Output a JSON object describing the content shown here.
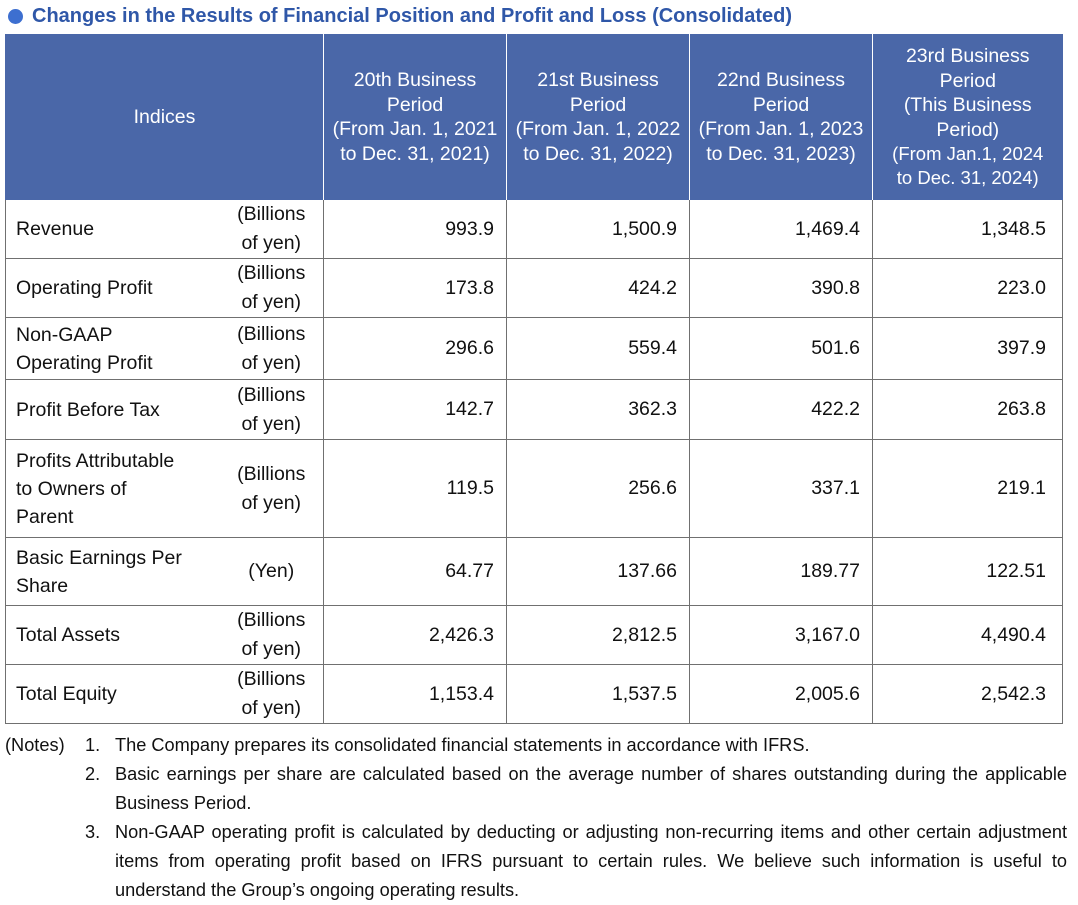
{
  "title": "Changes in the Results of Financial Position and Profit and Loss (Consolidated)",
  "header": {
    "indices_label": "Indices",
    "periods": [
      {
        "name": [
          "20th Business",
          "Period"
        ],
        "range": [
          "(From Jan. 1, 2021",
          "to Dec. 31, 2021)"
        ]
      },
      {
        "name": [
          "21st Business",
          "Period"
        ],
        "range": [
          "(From Jan. 1, 2022",
          "to Dec. 31, 2022)"
        ]
      },
      {
        "name": [
          "22nd Business",
          "Period"
        ],
        "range": [
          "(From Jan. 1, 2023",
          "to Dec. 31, 2023)"
        ]
      },
      {
        "name": [
          "23rd Business",
          "Period",
          "(This Business",
          "Period)"
        ],
        "range": [
          "(From Jan.1, 2024",
          "to Dec. 31, 2024)"
        ]
      }
    ]
  },
  "rows": [
    {
      "label": [
        "Revenue"
      ],
      "unit": [
        "(Billions",
        "of yen)"
      ],
      "values": [
        "993.9",
        "1,500.9",
        "1,469.4",
        "1,348.5"
      ]
    },
    {
      "label": [
        "Operating Profit"
      ],
      "unit": [
        "(Billions",
        "of yen)"
      ],
      "values": [
        "173.8",
        "424.2",
        "390.8",
        "223.0"
      ]
    },
    {
      "label": [
        "Non-GAAP",
        "Operating Profit"
      ],
      "unit": [
        "(Billions",
        "of yen)"
      ],
      "values": [
        "296.6",
        "559.4",
        "501.6",
        "397.9"
      ]
    },
    {
      "label": [
        "Profit Before Tax"
      ],
      "unit": [
        "(Billions",
        "of yen)"
      ],
      "values": [
        "142.7",
        "362.3",
        "422.2",
        "263.8"
      ]
    },
    {
      "label": [
        "Profits Attributable",
        "to Owners of",
        "Parent"
      ],
      "unit": [
        "(Billions",
        "of yen)"
      ],
      "values": [
        "119.5",
        "256.6",
        "337.1",
        "219.1"
      ]
    },
    {
      "label": [
        "Basic Earnings Per",
        "Share"
      ],
      "unit": [
        "(Yen)"
      ],
      "values": [
        "64.77",
        "137.66",
        "189.77",
        "122.51"
      ]
    },
    {
      "label": [
        "Total Assets"
      ],
      "unit": [
        "(Billions",
        "of yen)"
      ],
      "values": [
        "2,426.3",
        "2,812.5",
        "3,167.0",
        "4,490.4"
      ]
    },
    {
      "label": [
        "Total Equity"
      ],
      "unit": [
        "(Billions",
        "of yen)"
      ],
      "values": [
        "1,153.4",
        "1,537.5",
        "2,005.6",
        "2,542.3"
      ]
    }
  ],
  "notes": {
    "heading": "(Notes)",
    "items": [
      {
        "num": "1.",
        "text": "The Company prepares its consolidated financial statements in accordance with IFRS."
      },
      {
        "num": "2.",
        "text": "Basic earnings per share are calculated based on the average number of shares outstanding during the applicable Business Period."
      },
      {
        "num": "3.",
        "text": "Non-GAAP operating profit is calculated by deducting or adjusting non-recurring items and other certain adjustment items from operating profit based on IFRS pursuant to certain rules. We believe such information is useful to understand the Group’s ongoing operating results."
      }
    ]
  }
}
